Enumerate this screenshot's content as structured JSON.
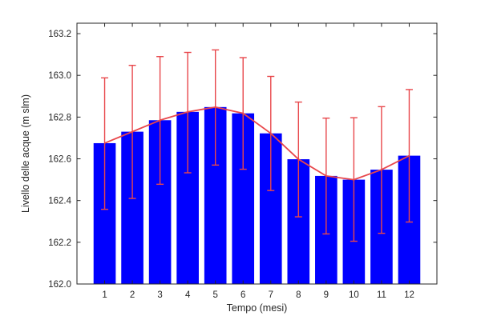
{
  "chart_data": {
    "type": "bar",
    "title": "",
    "xlabel": "Tempo (mesi)",
    "ylabel": "Livello delle acque (m slm)",
    "categories": [
      "1",
      "2",
      "3",
      "4",
      "5",
      "6",
      "7",
      "8",
      "9",
      "10",
      "11",
      "12"
    ],
    "values": [
      162.675,
      162.73,
      162.785,
      162.825,
      162.848,
      162.818,
      162.722,
      162.598,
      162.518,
      162.5,
      162.548,
      162.615
    ],
    "error_bars": {
      "upper": [
        162.988,
        163.048,
        163.09,
        163.11,
        163.122,
        163.085,
        162.995,
        162.872,
        162.795,
        162.797,
        162.85,
        162.932
      ],
      "lower": [
        162.358,
        162.41,
        162.478,
        162.533,
        162.57,
        162.55,
        162.448,
        162.322,
        162.24,
        162.205,
        162.243,
        162.297
      ]
    },
    "ylim": [
      162.0,
      163.25
    ],
    "yticks": [
      "162.0",
      "162.2",
      "162.4",
      "162.6",
      "162.8",
      "163.0",
      "163.2"
    ],
    "grid": false,
    "colors": {
      "bar": "#0000ff",
      "line": "#e8474b",
      "axis": "#262626"
    }
  }
}
